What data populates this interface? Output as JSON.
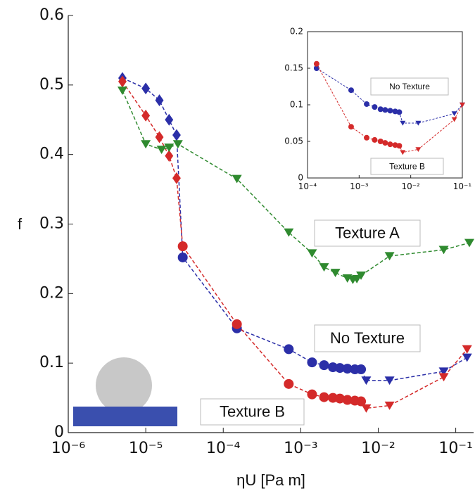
{
  "chart_data": [
    {
      "type": "line",
      "x_label": "ηU [Pa m]",
      "y_label": "f",
      "xscale": "log",
      "xlim": [
        1e-06,
        0.17
      ],
      "ylim": [
        0,
        0.6
      ],
      "xticks": [
        {
          "value": 1e-06,
          "label": "10⁻⁶"
        },
        {
          "value": 1e-05,
          "label": "10⁻⁵"
        },
        {
          "value": 0.0001,
          "label": "10⁻⁴"
        },
        {
          "value": 0.001,
          "label": "10⁻³"
        },
        {
          "value": 0.01,
          "label": "10⁻²"
        },
        {
          "value": 0.1,
          "label": "10⁻¹"
        }
      ],
      "yticks": [
        0,
        0.1,
        0.2,
        0.3,
        0.4,
        0.5,
        0.6
      ],
      "annotations": [
        "Texture A",
        "No Texture",
        "Texture B"
      ],
      "series": [
        {
          "color": "#2b2fa8",
          "x": [
            5e-06,
            1e-05,
            1.5e-05,
            2e-05,
            2.5e-05,
            3e-05,
            0.00015,
            0.0007,
            0.0014,
            0.002,
            0.0026,
            0.0032,
            0.004,
            0.005,
            0.006,
            0.007,
            0.014,
            0.07,
            0.14
          ],
          "values": [
            0.51,
            0.495,
            0.478,
            0.45,
            0.428,
            0.252,
            0.15,
            0.12,
            0.101,
            0.097,
            0.094,
            0.093,
            0.092,
            0.091,
            0.091,
            0.075,
            0.075,
            0.088,
            0.108
          ],
          "markers": [
            "diamond",
            "diamond",
            "diamond",
            "diamond",
            "diamond",
            "circle",
            "circle",
            "circle",
            "circle",
            "circle",
            "circle",
            "circle",
            "circle",
            "circle",
            "circle",
            "triangle",
            "triangle",
            "triangle",
            "triangle"
          ]
        },
        {
          "color": "#d42a2a",
          "x": [
            5e-06,
            1e-05,
            1.5e-05,
            2e-05,
            2.5e-05,
            3e-05,
            0.00015,
            0.0007,
            0.0014,
            0.002,
            0.0026,
            0.0032,
            0.004,
            0.005,
            0.006,
            0.007,
            0.014,
            0.07,
            0.14
          ],
          "values": [
            0.505,
            0.456,
            0.425,
            0.398,
            0.366,
            0.268,
            0.156,
            0.07,
            0.055,
            0.051,
            0.05,
            0.049,
            0.047,
            0.046,
            0.045,
            0.035,
            0.039,
            0.08,
            0.12
          ],
          "markers": [
            "diamond",
            "diamond",
            "diamond",
            "diamond",
            "diamond",
            "circle",
            "circle",
            "circle",
            "circle",
            "circle",
            "circle",
            "circle",
            "circle",
            "circle",
            "circle",
            "triangle",
            "triangle",
            "triangle",
            "triangle"
          ]
        },
        {
          "color": "#2f8a2f",
          "x": [
            5e-06,
            1e-05,
            1.6e-05,
            2e-05,
            2.6e-05,
            0.00015,
            0.0007,
            0.0014,
            0.002,
            0.0028,
            0.004,
            0.0047,
            0.0053,
            0.006,
            0.014,
            0.07,
            0.15
          ],
          "values": [
            0.492,
            0.415,
            0.407,
            0.41,
            0.415,
            0.365,
            0.288,
            0.258,
            0.238,
            0.23,
            0.222,
            0.22,
            0.221,
            0.226,
            0.254,
            0.263,
            0.273
          ],
          "markers": [
            "triangle",
            "triangle",
            "triangle",
            "triangle",
            "triangle",
            "triangle",
            "triangle",
            "triangle",
            "triangle",
            "triangle",
            "triangle",
            "triangle",
            "triangle",
            "triangle",
            "triangle",
            "triangle",
            "triangle"
          ]
        }
      ]
    },
    {
      "type": "line",
      "xscale": "log",
      "xlim": [
        0.0001,
        0.1
      ],
      "ylim": [
        0,
        0.2
      ],
      "xticks": [
        {
          "value": 0.0001,
          "label": "10⁻⁴"
        },
        {
          "value": 0.001,
          "label": "10⁻³"
        },
        {
          "value": 0.01,
          "label": "10⁻²"
        },
        {
          "value": 0.1,
          "label": "10⁻¹"
        }
      ],
      "yticks": [
        0,
        0.05,
        0.1,
        0.15,
        0.2
      ],
      "annotations": [
        "No Texture",
        "Texture B"
      ],
      "series": [
        {
          "color": "#2b2fa8",
          "x": [
            0.00015,
            0.0007,
            0.0014,
            0.002,
            0.0026,
            0.0032,
            0.004,
            0.005,
            0.006,
            0.007,
            0.014,
            0.07,
            0.1
          ],
          "values": [
            0.15,
            0.12,
            0.101,
            0.097,
            0.094,
            0.093,
            0.092,
            0.091,
            0.09,
            0.075,
            0.075,
            0.088,
            0.1
          ],
          "markers": [
            "circle",
            "circle",
            "circle",
            "circle",
            "circle",
            "circle",
            "circle",
            "circle",
            "circle",
            "triangle",
            "triangle",
            "triangle",
            "triangle"
          ]
        },
        {
          "color": "#d42a2a",
          "x": [
            0.00015,
            0.0007,
            0.0014,
            0.002,
            0.0026,
            0.0032,
            0.004,
            0.005,
            0.006,
            0.007,
            0.014,
            0.07,
            0.1
          ],
          "values": [
            0.156,
            0.07,
            0.055,
            0.052,
            0.05,
            0.048,
            0.046,
            0.045,
            0.044,
            0.035,
            0.039,
            0.08,
            0.1
          ],
          "markers": [
            "circle",
            "circle",
            "circle",
            "circle",
            "circle",
            "circle",
            "circle",
            "circle",
            "circle",
            "triangle",
            "triangle",
            "triangle",
            "triangle"
          ]
        }
      ]
    }
  ]
}
